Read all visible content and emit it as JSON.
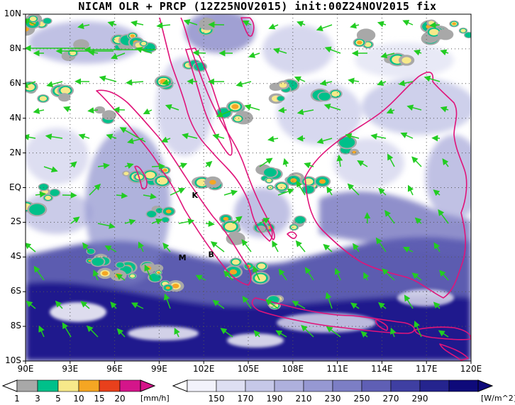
{
  "title": "NICAM OLR + PRCP (12Z25NOV2015) init:00Z24NOV2015 fix",
  "axes": {
    "lat_labels": [
      "10N",
      "8N",
      "6N",
      "4N",
      "2N",
      "EQ",
      "2S",
      "4S",
      "6S",
      "8S",
      "10S"
    ],
    "lon_labels": [
      "90E",
      "93E",
      "96E",
      "99E",
      "102E",
      "105E",
      "108E",
      "111E",
      "114E",
      "117E",
      "120E"
    ]
  },
  "markers": [
    {
      "label": "K",
      "lon": 101.2,
      "lat": -0.6
    },
    {
      "label": "M",
      "lon": 100.3,
      "lat": -4.2
    },
    {
      "label": "B",
      "lon": 102.3,
      "lat": -4.0
    }
  ],
  "precip_colorbar": {
    "labels": [
      "1",
      "3",
      "5",
      "10",
      "15",
      "20"
    ],
    "unit": "[mm/h]",
    "colors": [
      "#a8a8a8",
      "#00c08a",
      "#f7e98a",
      "#f5a623",
      "#e8401c",
      "#d4158a"
    ]
  },
  "olr_colorbar": {
    "labels": [
      "150",
      "170",
      "190",
      "210",
      "230",
      "250",
      "270",
      "290"
    ],
    "unit": "[W/m^2]",
    "colors": [
      "#f2f2fb",
      "#dedff2",
      "#c6c8e8",
      "#aeb0dd",
      "#9698d2",
      "#7c7ec5",
      "#5f5fb5",
      "#3f3fa2",
      "#25248e",
      "#0e0a7a"
    ]
  },
  "colors": {
    "coast": "#e0147a",
    "wind": "#22cc22",
    "grid": "#555555"
  }
}
